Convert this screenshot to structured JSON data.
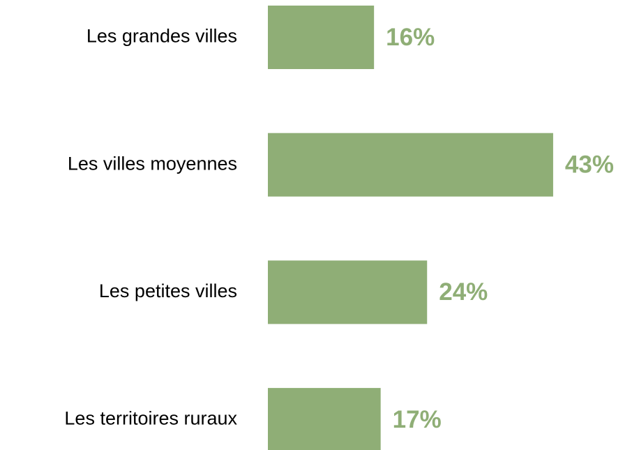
{
  "chart_data": {
    "type": "bar",
    "orientation": "horizontal",
    "categories": [
      "Les grandes villes",
      "Les villes moyennes",
      "Les petites villes",
      "Les territoires ruraux"
    ],
    "values": [
      16,
      43,
      24,
      17
    ],
    "value_labels": [
      "16%",
      "43%",
      "24%",
      "17%"
    ],
    "color": "#8fae76"
  }
}
